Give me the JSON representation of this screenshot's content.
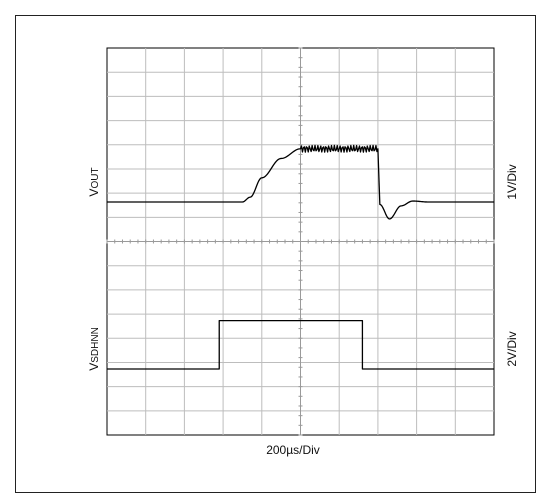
{
  "chart_data": {
    "type": "line",
    "title": "",
    "xlabel": "200µs/Div",
    "x_unit_per_div": "200µs",
    "divisions": {
      "x": 10,
      "y": 8
    },
    "grid": true,
    "grid_minor_lines_per_div": 2,
    "x": [
      0,
      0.5,
      1,
      1.5,
      2,
      2.5,
      3,
      3.5,
      3.7,
      4,
      4.5,
      5,
      5.5,
      6,
      6.5,
      7,
      7.05,
      7.3,
      7.6,
      7.9,
      8.3,
      8.8,
      9.5,
      10
    ],
    "series": [
      {
        "name": "VOUT",
        "label_main": "V",
        "label_sub": "OUT",
        "scale": "1V/Div",
        "color": "#000000",
        "ripple_divs": 0.07,
        "ripple_range": [
          5,
          7
        ],
        "values": [
          0,
          0,
          0,
          0,
          0,
          0,
          0,
          0,
          0.1,
          0.5,
          0.9,
          1.1,
          1.1,
          1.1,
          1.1,
          1.1,
          -0.05,
          -0.35,
          -0.08,
          0.02,
          0,
          0,
          0,
          0
        ]
      },
      {
        "name": "VSDHNN",
        "label_main": "V",
        "label_sub": "SDHNN",
        "scale": "2V/Div",
        "color": "#000000",
        "x": [
          0,
          2.9,
          2.9,
          6.6,
          6.6,
          10
        ],
        "values": [
          0,
          0,
          1,
          1,
          0,
          0
        ]
      }
    ]
  }
}
